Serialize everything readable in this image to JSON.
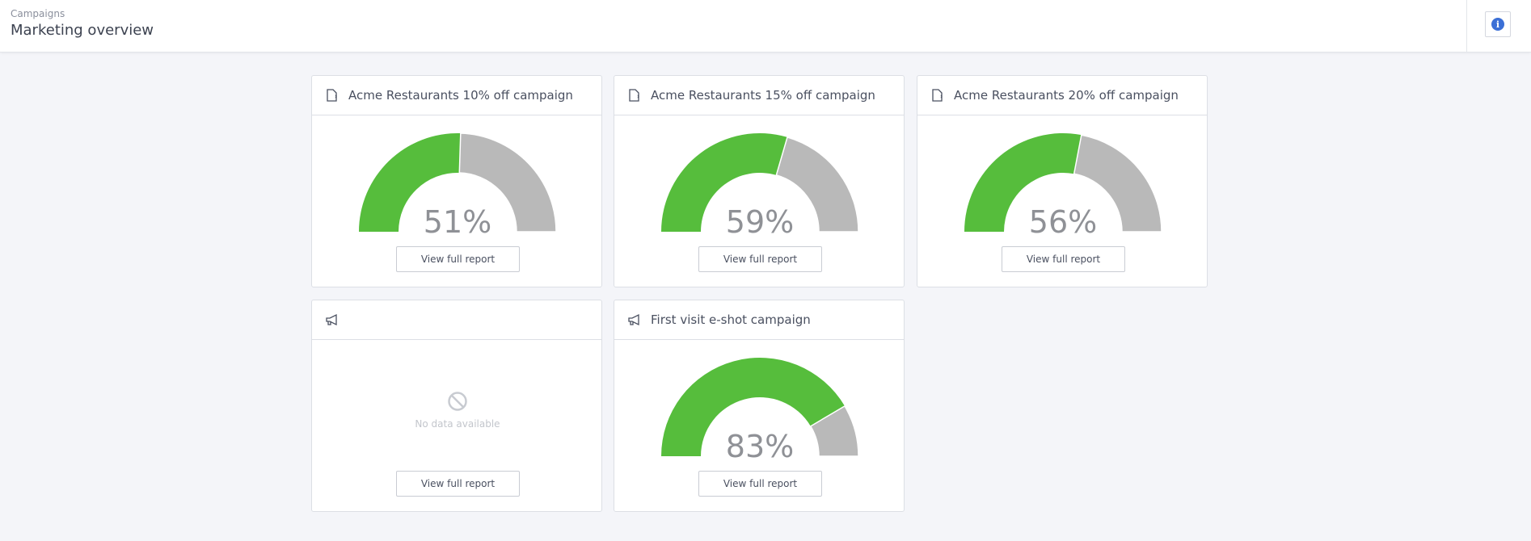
{
  "header": {
    "breadcrumb": "Campaigns",
    "title": "Marketing overview",
    "info_icon": "info-icon"
  },
  "colors": {
    "positive": "#56bd3c",
    "remaining": "#b9b9b9",
    "info": "#3b6fd6"
  },
  "cards": [
    {
      "title": "Acme Restaurants 10% off campaign",
      "icon": "voucher-icon",
      "percent": 51,
      "percent_label": "51%",
      "button": "View full report"
    },
    {
      "title": "Acme Restaurants 15% off campaign",
      "icon": "voucher-icon",
      "percent": 59,
      "percent_label": "59%",
      "button": "View full report"
    },
    {
      "title": "Acme Restaurants 20% off campaign",
      "icon": "voucher-icon",
      "percent": 56,
      "percent_label": "56%",
      "button": "View full report"
    },
    {
      "title": "",
      "icon": "megaphone-icon",
      "no_data": "No data available",
      "no_data_icon": "no-data-icon",
      "button": "View full report"
    },
    {
      "title": "First visit e-shot campaign",
      "icon": "megaphone-icon",
      "percent": 83,
      "percent_label": "83%",
      "button": "View full report"
    }
  ]
}
